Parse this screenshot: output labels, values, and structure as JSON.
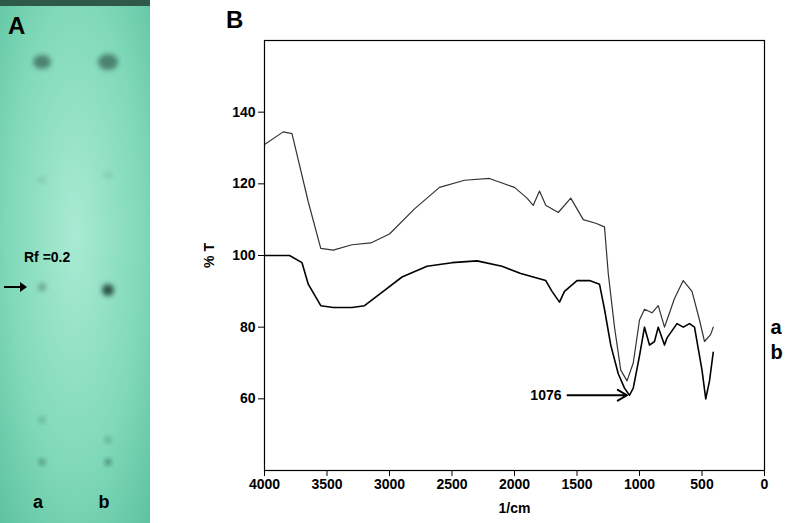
{
  "panel_a": {
    "letter": "A",
    "marker_label": "Rf =0.2",
    "lanes": [
      "a",
      "b"
    ]
  },
  "chart_data": {
    "type": "line",
    "title": "B",
    "x_label": "1/cm",
    "y_label": "% T",
    "xlim": [
      4000,
      0
    ],
    "xticks": [
      4000,
      3500,
      3000,
      2500,
      2000,
      1500,
      1000,
      500,
      0
    ],
    "ylim": [
      40,
      160
    ],
    "yticks": [
      60,
      80,
      100,
      120,
      140
    ],
    "grid": false,
    "annotations": [
      {
        "text": "1076",
        "x": 1076,
        "y": 61
      }
    ],
    "series": [
      {
        "name": "a",
        "color": "#333333",
        "line_style": "solid",
        "x": [
          4000,
          3850,
          3780,
          3650,
          3550,
          3450,
          3300,
          3150,
          3000,
          2800,
          2600,
          2400,
          2200,
          2000,
          1900,
          1850,
          1800,
          1750,
          1650,
          1550,
          1500,
          1450,
          1350,
          1280,
          1250,
          1200,
          1150,
          1100,
          1050,
          1000,
          960,
          900,
          850,
          800,
          780,
          720,
          650,
          580,
          520,
          480,
          430,
          410
        ],
        "values": [
          131,
          134.5,
          134,
          115,
          102,
          101.5,
          103,
          103.5,
          106,
          113,
          119,
          121,
          121.5,
          119,
          116,
          114,
          118,
          114,
          112,
          116,
          113,
          110,
          109,
          108,
          95,
          80,
          68,
          65,
          70,
          82,
          85,
          84,
          86,
          80,
          82,
          88,
          93,
          90,
          82,
          76,
          78,
          80
        ]
      },
      {
        "name": "b",
        "color": "#000000",
        "line_style": "solid",
        "x": [
          4000,
          3900,
          3800,
          3700,
          3650,
          3550,
          3450,
          3300,
          3200,
          3050,
          2900,
          2700,
          2500,
          2300,
          2100,
          1950,
          1850,
          1750,
          1700,
          1640,
          1600,
          1500,
          1400,
          1320,
          1280,
          1230,
          1170,
          1120,
          1080,
          1050,
          1000,
          960,
          920,
          880,
          850,
          800,
          780,
          700,
          650,
          600,
          560,
          500,
          470,
          440,
          410
        ],
        "values": [
          100,
          100,
          100,
          98,
          92,
          86,
          85.5,
          85.5,
          86,
          90,
          94,
          97,
          98,
          98.5,
          97,
          95,
          94,
          93,
          90,
          87,
          90,
          93,
          93,
          92,
          85,
          75,
          67,
          63,
          61,
          63,
          72,
          80,
          75,
          76,
          80,
          75,
          77,
          81,
          80,
          81,
          80,
          68,
          60,
          65,
          73
        ]
      }
    ]
  }
}
